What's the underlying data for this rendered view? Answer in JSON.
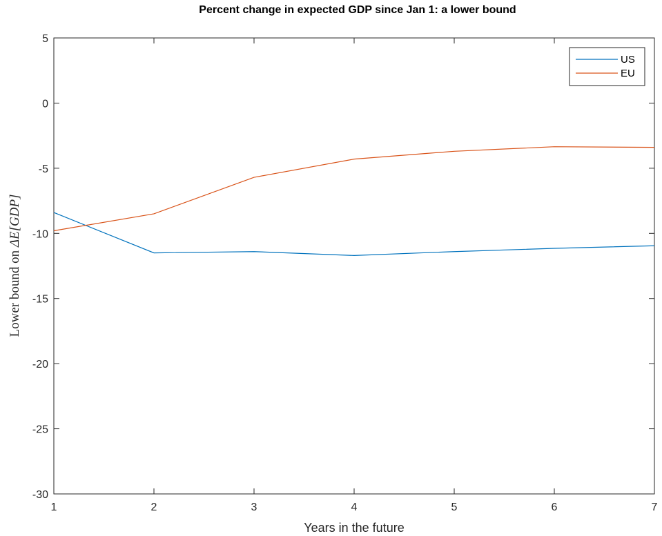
{
  "chart_data": {
    "type": "line",
    "title": "Percent change in expected GDP since Jan 1: a lower bound",
    "xlabel": "Years in the future",
    "ylabel_prefix": "Lower bound on ",
    "ylabel_math": "ΔE[GDP]",
    "xlim": [
      1,
      7
    ],
    "ylim": [
      -30,
      5
    ],
    "xticks": [
      "1",
      "2",
      "3",
      "4",
      "5",
      "6",
      "7"
    ],
    "yticks": [
      "5",
      "0",
      "-5",
      "-10",
      "-15",
      "-20",
      "-25",
      "-30"
    ],
    "x": [
      1,
      2,
      3,
      4,
      5,
      6,
      7
    ],
    "series": [
      {
        "name": "US",
        "color": "#0072BD",
        "values": [
          -8.4,
          -11.5,
          -11.4,
          -11.7,
          -11.4,
          -11.15,
          -10.95
        ]
      },
      {
        "name": "EU",
        "color": "#D95319",
        "values": [
          -9.8,
          -8.5,
          -5.7,
          -4.3,
          -3.7,
          -3.35,
          -3.4
        ]
      }
    ],
    "grid": false,
    "legend_position": "top-right"
  }
}
